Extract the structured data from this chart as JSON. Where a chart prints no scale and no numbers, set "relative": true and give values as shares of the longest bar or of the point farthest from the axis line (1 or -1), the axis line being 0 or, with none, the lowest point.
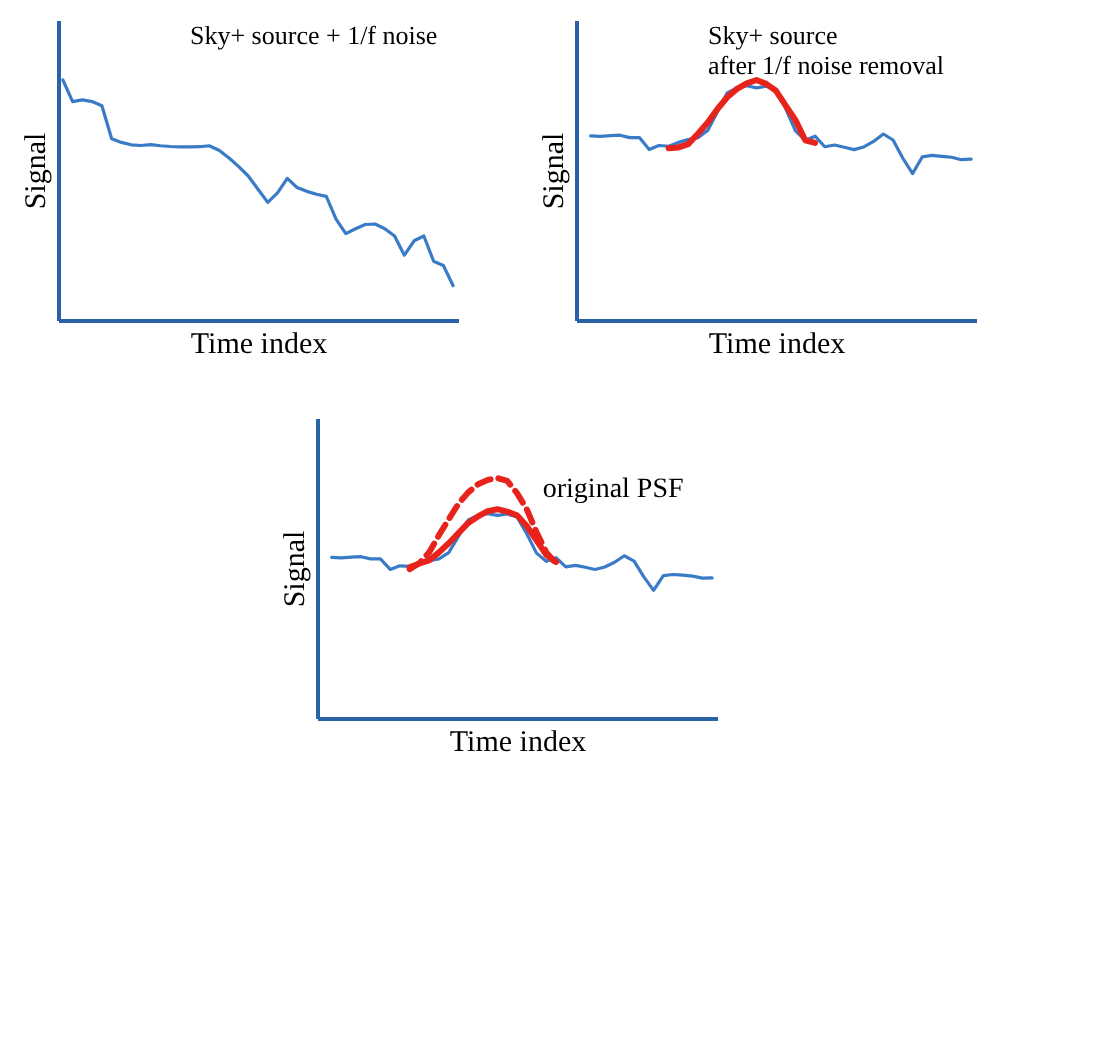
{
  "chart_data": [
    {
      "type": "line",
      "relative": true,
      "xlabel": "Time index",
      "ylabel": "Signal",
      "annotations": [
        "Sky+ source + 1/f noise"
      ],
      "categories": [
        null,
        null,
        null,
        null,
        null,
        null,
        null,
        null,
        null,
        null,
        null,
        null,
        null,
        null,
        null,
        null,
        null,
        null,
        null,
        null,
        null,
        null,
        null,
        null,
        null,
        null,
        null,
        null,
        null,
        null,
        null,
        null,
        null,
        null,
        null,
        null,
        null,
        null,
        null,
        null,
        null
      ],
      "series": [
        {
          "color": "#3a7bc8",
          "line_style": "solid",
          "values": [
            1.0,
            0.91,
            0.917,
            0.91,
            0.893,
            0.755,
            0.74,
            0.73,
            0.727,
            0.731,
            0.726,
            0.723,
            0.721,
            0.721,
            0.722,
            0.726,
            0.707,
            0.676,
            0.64,
            0.6,
            0.545,
            0.49,
            0.53,
            0.59,
            0.552,
            0.536,
            0.524,
            0.515,
            0.42,
            0.36,
            0.38,
            0.398,
            0.4,
            0.38,
            0.35,
            0.27,
            0.33,
            0.35,
            0.245,
            0.227,
            0.143
          ]
        }
      ]
    },
    {
      "type": "line",
      "relative": true,
      "xlabel": "Time index",
      "ylabel": "Signal",
      "annotations": [
        "Sky+ source\nafter 1/f noise removal"
      ],
      "categories": [
        null,
        null,
        null,
        null,
        null,
        null,
        null,
        null,
        null,
        null,
        null,
        null,
        null,
        null,
        null,
        null,
        null,
        null,
        null,
        null,
        null,
        null,
        null,
        null,
        null,
        null,
        null,
        null,
        null,
        null,
        null,
        null,
        null,
        null,
        null,
        null,
        null,
        null,
        null,
        null,
        null
      ],
      "series": [
        {
          "color": "#3a7bc8",
          "line_style": "solid",
          "values": [
            null,
            0.767,
            0.765,
            0.768,
            0.77,
            0.76,
            0.76,
            0.71,
            0.727,
            0.724,
            0.74,
            0.752,
            0.76,
            0.79,
            0.868,
            0.946,
            0.967,
            0.976,
            0.967,
            0.974,
            0.961,
            0.88,
            0.788,
            0.749,
            0.766,
            0.722,
            0.729,
            0.72,
            0.71,
            0.721,
            0.744,
            0.775,
            0.75,
            0.674,
            0.61,
            0.68,
            0.686,
            0.682,
            0.678,
            0.668,
            0.67
          ]
        },
        {
          "color": "#e8231c",
          "line_style": "solid",
          "values": [
            null,
            null,
            null,
            null,
            null,
            null,
            null,
            null,
            null,
            0.716,
            0.719,
            0.733,
            0.776,
            0.823,
            0.879,
            0.928,
            0.963,
            0.986,
            1.0,
            0.984,
            0.955,
            0.893,
            0.833,
            0.749,
            0.738,
            null,
            null,
            null,
            null,
            null,
            null,
            null,
            null,
            null,
            null,
            null,
            null,
            null,
            null,
            null,
            null
          ]
        }
      ]
    },
    {
      "type": "line",
      "relative": true,
      "xlabel": "Time index",
      "ylabel": "Signal",
      "categories": [
        null,
        null,
        null,
        null,
        null,
        null,
        null,
        null,
        null,
        null,
        null,
        null,
        null,
        null,
        null,
        null,
        null,
        null,
        null,
        null,
        null,
        null,
        null,
        null,
        null,
        null,
        null,
        null,
        null,
        null,
        null,
        null,
        null,
        null,
        null,
        null,
        null,
        null,
        null,
        null,
        null
      ],
      "series": [
        {
          "color": "#3a7bc8",
          "line_style": "solid",
          "values": [
            null,
            0.669,
            0.667,
            0.67,
            0.672,
            0.663,
            0.663,
            0.619,
            0.634,
            0.632,
            0.646,
            0.656,
            0.663,
            0.689,
            0.757,
            0.825,
            0.844,
            0.851,
            0.844,
            0.85,
            0.838,
            0.768,
            0.687,
            0.653,
            0.668,
            0.63,
            0.636,
            0.628,
            0.619,
            0.629,
            0.649,
            0.676,
            0.654,
            0.588,
            0.532,
            0.593,
            0.598,
            0.595,
            0.591,
            0.583,
            0.584
          ]
        },
        {
          "color": "#e8231c",
          "line_style": "solid",
          "values": [
            null,
            null,
            null,
            null,
            null,
            null,
            null,
            null,
            null,
            0.628,
            0.644,
            0.657,
            0.69,
            0.728,
            0.77,
            0.813,
            0.84,
            0.862,
            0.87,
            0.86,
            0.845,
            0.8,
            0.74,
            0.68,
            0.65,
            null,
            null,
            null,
            null,
            null,
            null,
            null,
            null,
            null,
            null,
            null,
            null,
            null,
            null,
            null,
            null
          ]
        },
        {
          "name": "original PSF",
          "color": "#e8231c",
          "line_style": "dashed",
          "values": [
            null,
            null,
            null,
            null,
            null,
            null,
            null,
            null,
            null,
            0.62,
            0.646,
            0.69,
            0.762,
            0.828,
            0.893,
            0.94,
            0.974,
            0.992,
            1.0,
            0.988,
            0.937,
            0.87,
            0.774,
            0.69,
            0.644,
            null,
            null,
            null,
            null,
            null,
            null,
            null,
            null,
            null,
            null,
            null,
            null,
            null,
            null,
            null,
            null
          ]
        }
      ]
    }
  ]
}
